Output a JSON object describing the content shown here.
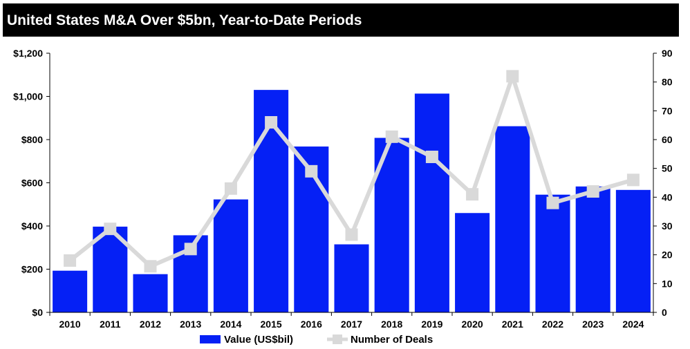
{
  "chart_data": {
    "type": "bar",
    "title": "United States M&A Over $5bn, Year-to-Date Periods",
    "categories": [
      "2010",
      "2011",
      "2012",
      "2013",
      "2014",
      "2015",
      "2016",
      "2017",
      "2018",
      "2019",
      "2020",
      "2021",
      "2022",
      "2023",
      "2024"
    ],
    "series": [
      {
        "name": "Value (US$bil)",
        "type": "bar",
        "axis": "left",
        "color": "#0520F5",
        "values": [
          193,
          397,
          177,
          357,
          523,
          1030,
          768,
          315,
          808,
          1013,
          460,
          862,
          545,
          583,
          567
        ]
      },
      {
        "name": "Number of Deals",
        "type": "line",
        "axis": "right",
        "color": "#D9D9D9",
        "values": [
          18,
          29,
          16,
          22,
          43,
          66,
          49,
          27,
          61,
          54,
          41,
          82,
          38,
          42,
          46
        ]
      }
    ],
    "y_left": {
      "min": 0,
      "max": 1200,
      "step": 200,
      "tick_labels": [
        "$0",
        "$200",
        "$400",
        "$600",
        "$800",
        "$1,000",
        "$1,200"
      ]
    },
    "y_right": {
      "min": 0,
      "max": 90,
      "step": 10,
      "tick_labels": [
        "0",
        "10",
        "20",
        "30",
        "40",
        "50",
        "60",
        "70",
        "80",
        "90"
      ]
    },
    "legend_position": "bottom-center",
    "grid": false
  }
}
